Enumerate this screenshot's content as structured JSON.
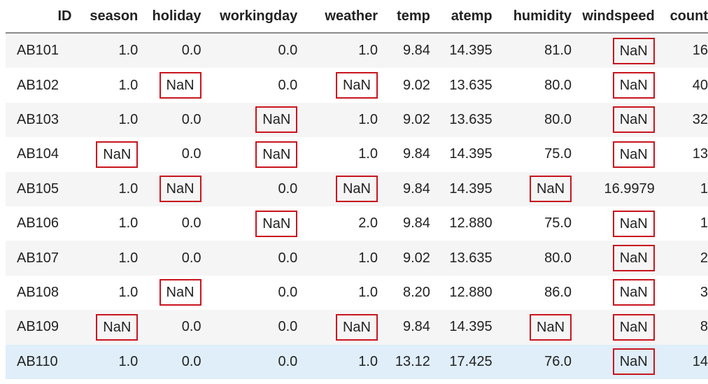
{
  "table": {
    "headers": [
      "ID",
      "season",
      "holiday",
      "workingday",
      "weather",
      "temp",
      "atemp",
      "humidity",
      "windspeed",
      "count"
    ],
    "rows": [
      [
        "AB101",
        "1.0",
        "0.0",
        "0.0",
        "1.0",
        "9.84",
        "14.395",
        "81.0",
        "NaN",
        "16"
      ],
      [
        "AB102",
        "1.0",
        "NaN",
        "0.0",
        "NaN",
        "9.02",
        "13.635",
        "80.0",
        "NaN",
        "40"
      ],
      [
        "AB103",
        "1.0",
        "0.0",
        "NaN",
        "1.0",
        "9.02",
        "13.635",
        "80.0",
        "NaN",
        "32"
      ],
      [
        "AB104",
        "NaN",
        "0.0",
        "NaN",
        "1.0",
        "9.84",
        "14.395",
        "75.0",
        "NaN",
        "13"
      ],
      [
        "AB105",
        "1.0",
        "NaN",
        "0.0",
        "NaN",
        "9.84",
        "14.395",
        "NaN",
        "16.9979",
        "1"
      ],
      [
        "AB106",
        "1.0",
        "0.0",
        "NaN",
        "2.0",
        "9.84",
        "12.880",
        "75.0",
        "NaN",
        "1"
      ],
      [
        "AB107",
        "1.0",
        "0.0",
        "0.0",
        "1.0",
        "9.02",
        "13.635",
        "80.0",
        "NaN",
        "2"
      ],
      [
        "AB108",
        "1.0",
        "NaN",
        "0.0",
        "1.0",
        "8.20",
        "12.880",
        "86.0",
        "NaN",
        "3"
      ],
      [
        "AB109",
        "NaN",
        "0.0",
        "0.0",
        "NaN",
        "9.84",
        "14.395",
        "NaN",
        "NaN",
        "8"
      ],
      [
        "AB110",
        "1.0",
        "0.0",
        "0.0",
        "1.0",
        "13.12",
        "17.425",
        "76.0",
        "NaN",
        "14"
      ]
    ],
    "highlight_color": "#c9151e",
    "hover_row_color": "#dfeef9",
    "hover_row_index": 9
  }
}
